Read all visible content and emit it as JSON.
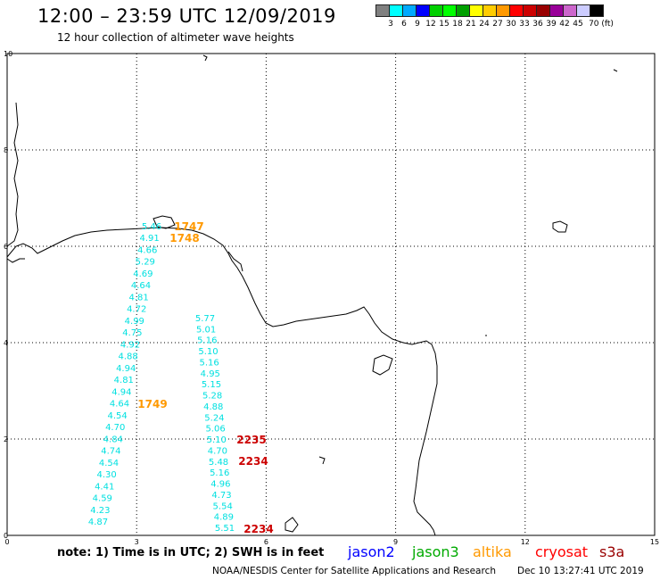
{
  "header": {
    "title": "12:00 – 23:59 UTC 12/09/2019",
    "subtitle": "12 hour collection of altimeter wave heights"
  },
  "color_scale": {
    "colors": [
      "#808080",
      "#00ffff",
      "#00aaff",
      "#0000ff",
      "#00d000",
      "#00ff00",
      "#00a000",
      "#ffff00",
      "#ffcc00",
      "#ff9900",
      "#ff0000",
      "#cc0000",
      "#990000",
      "#990099",
      "#cc66cc",
      "#ccccff",
      "#000000"
    ],
    "labels": [
      "3",
      "6",
      "9",
      "12",
      "15",
      "18",
      "21",
      "24",
      "27",
      "30",
      "33",
      "36",
      "39",
      "42",
      "45",
      "70 (ft)"
    ]
  },
  "chart_data": {
    "type": "scatter",
    "x_ticks": [
      "0",
      "3",
      "6",
      "9",
      "12",
      "15"
    ],
    "y_ticks": [
      "0",
      "2",
      "4",
      "6",
      "8",
      "10"
    ],
    "xlim": [
      0,
      15
    ],
    "ylim": [
      0,
      10
    ],
    "grid": true,
    "tracks": [
      {
        "satellite": "jason3",
        "color": "#00e0e0",
        "values": [
          "5.46",
          "4.91",
          "4.66",
          "5.29",
          "4.69",
          "4.64",
          "4.81",
          "4.72",
          "4.99",
          "4.75",
          "4.92",
          "4.88",
          "4.94",
          "4.81",
          "4.94",
          "4.64",
          "4.54",
          "4.70",
          "4.84",
          "4.74",
          "4.54",
          "4.30",
          "4.41",
          "4.59",
          "4.23",
          "4.87"
        ]
      },
      {
        "satellite": "jason3",
        "color": "#00e0e0",
        "values": [
          "5.77",
          "5.01",
          "5.16",
          "5.10",
          "5.16",
          "4.95",
          "5.15",
          "5.28",
          "4.88",
          "5.24",
          "5.06",
          "5.10",
          "4.70",
          "5.48",
          "5.16",
          "4.96",
          "4.73",
          "5.54",
          "4.89",
          "5.51"
        ]
      }
    ],
    "time_labels": [
      {
        "text": "1747",
        "color": "#ff9900"
      },
      {
        "text": "1748",
        "color": "#ff9900"
      },
      {
        "text": "1749",
        "color": "#ff9900"
      },
      {
        "text": "2235",
        "color": "#cc0000"
      },
      {
        "text": "2234",
        "color": "#cc0000"
      },
      {
        "text": "2234",
        "color": "#cc0000"
      }
    ]
  },
  "footer": {
    "note": "note:  1) Time is in UTC;  2) SWH is in feet",
    "legend": [
      {
        "name": "jason2",
        "color": "#0000ff"
      },
      {
        "name": "jason3",
        "color": "#00aa00"
      },
      {
        "name": "altika",
        "color": "#ff9900"
      },
      {
        "name": "cryosat",
        "color": "#ff0000"
      },
      {
        "name": "s3a",
        "color": "#990000"
      }
    ],
    "credit": "NOAA/NESDIS Center for Satellite Applications and Research",
    "timestamp": "Dec 10 13:27:41 UTC 2019"
  }
}
